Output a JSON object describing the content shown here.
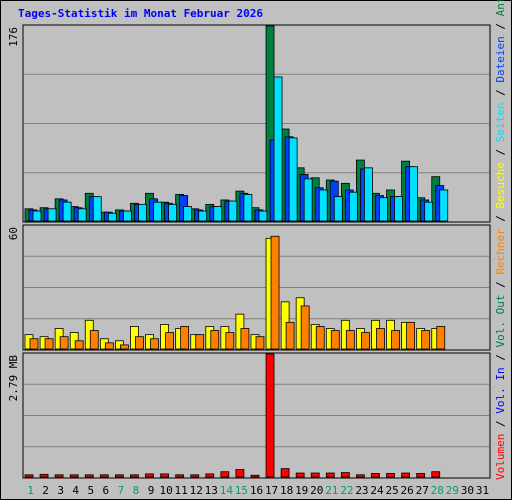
{
  "title": "Tages-Statistik im Monat Februar 2026",
  "colors": {
    "anfragen": "#008040",
    "dateien": "#0040ff",
    "seiten": "#00e0ff",
    "besuche": "#ffff00",
    "rechner": "#ff8000",
    "volumen": "#ff0000",
    "weekend": "#00a060",
    "weekday": "#000000"
  },
  "chart_data": [
    {
      "type": "bar",
      "name": "requests-files-pages",
      "y_max_label": "176",
      "ylim": [
        0,
        176
      ],
      "categories": [
        "1",
        "2",
        "3",
        "4",
        "5",
        "6",
        "7",
        "8",
        "9",
        "10",
        "11",
        "12",
        "13",
        "14",
        "15",
        "16",
        "17",
        "18",
        "19",
        "20",
        "21",
        "22",
        "23",
        "24",
        "25",
        "26",
        "27",
        "28",
        "29",
        "30",
        "31"
      ],
      "series": [
        {
          "name": "Anfragen",
          "values": [
            11,
            12,
            20,
            13,
            25,
            8,
            10,
            16,
            25,
            17,
            24,
            11,
            15,
            19,
            27,
            12,
            176,
            83,
            48,
            39,
            37,
            34,
            55,
            25,
            28,
            54,
            21,
            40,
            0,
            0,
            0
          ]
        },
        {
          "name": "Dateien",
          "values": [
            10,
            11,
            19,
            12,
            22,
            8,
            9,
            15,
            20,
            16,
            23,
            10,
            13,
            18,
            25,
            10,
            73,
            76,
            42,
            30,
            36,
            28,
            47,
            23,
            22,
            49,
            19,
            32,
            0,
            0,
            0
          ]
        },
        {
          "name": "Seiten",
          "values": [
            9,
            11,
            17,
            11,
            22,
            7,
            9,
            15,
            17,
            15,
            13,
            9,
            13,
            18,
            24,
            9,
            130,
            75,
            38,
            28,
            22,
            26,
            48,
            21,
            22,
            49,
            17,
            28,
            0,
            0,
            0
          ]
        }
      ]
    },
    {
      "type": "bar",
      "name": "visits-hosts",
      "y_max_label": "60",
      "ylim": [
        0,
        60
      ],
      "categories": [
        "1",
        "2",
        "3",
        "4",
        "5",
        "6",
        "7",
        "8",
        "9",
        "10",
        "11",
        "12",
        "13",
        "14",
        "15",
        "16",
        "17",
        "18",
        "19",
        "20",
        "21",
        "22",
        "23",
        "24",
        "25",
        "26",
        "27",
        "28",
        "29",
        "30",
        "31"
      ],
      "series": [
        {
          "name": "Besuche",
          "values": [
            7,
            6,
            10,
            8,
            14,
            5,
            4,
            11,
            7,
            12,
            10,
            7,
            11,
            11,
            17,
            7,
            54,
            23,
            25,
            12,
            10,
            14,
            10,
            14,
            14,
            13,
            10,
            10,
            0,
            0,
            0
          ]
        },
        {
          "name": "Rechner",
          "values": [
            5,
            5,
            6,
            4,
            9,
            3,
            2,
            6,
            5,
            8,
            11,
            7,
            9,
            8,
            10,
            6,
            55,
            13,
            21,
            11,
            9,
            9,
            8,
            10,
            9,
            13,
            9,
            11,
            0,
            0,
            0
          ]
        }
      ]
    },
    {
      "type": "bar",
      "name": "volume",
      "y_max_label": "2.79 MB",
      "ylim": [
        0,
        2.79
      ],
      "categories": [
        "1",
        "2",
        "3",
        "4",
        "5",
        "6",
        "7",
        "8",
        "9",
        "10",
        "11",
        "12",
        "13",
        "14",
        "15",
        "16",
        "17",
        "18",
        "19",
        "20",
        "21",
        "22",
        "23",
        "24",
        "25",
        "26",
        "27",
        "28",
        "29",
        "30",
        "31"
      ],
      "series": [
        {
          "name": "Volumen",
          "values": [
            0.05,
            0.06,
            0.05,
            0.05,
            0.05,
            0.05,
            0.05,
            0.05,
            0.07,
            0.07,
            0.05,
            0.05,
            0.07,
            0.12,
            0.17,
            0.04,
            2.79,
            0.19,
            0.09,
            0.09,
            0.09,
            0.1,
            0.05,
            0.08,
            0.08,
            0.09,
            0.08,
            0.12,
            0,
            0,
            0
          ]
        }
      ]
    }
  ],
  "right_legend": [
    {
      "text": "Volumen",
      "color": "#ff0000"
    },
    {
      "text": " / ",
      "color": "#000000"
    },
    {
      "text": "Vol. In",
      "color": "#0000ff"
    },
    {
      "text": " / ",
      "color": "#000000"
    },
    {
      "text": "Vol. Out",
      "color": "#008040"
    },
    {
      "text": " / ",
      "color": "#000000"
    },
    {
      "text": "Rechner",
      "color": "#ff8000"
    },
    {
      "text": " / ",
      "color": "#000000"
    },
    {
      "text": "Besuche",
      "color": "#ffff00"
    },
    {
      "text": " / ",
      "color": "#000000"
    },
    {
      "text": "Seiten",
      "color": "#00e0ff"
    },
    {
      "text": " / ",
      "color": "#000000"
    },
    {
      "text": "Dateien",
      "color": "#0040ff"
    },
    {
      "text": " / ",
      "color": "#000000"
    },
    {
      "text": "Anfragen",
      "color": "#008040"
    }
  ],
  "weekend_days": [
    1,
    7,
    8,
    14,
    15,
    21,
    22,
    28,
    29
  ]
}
